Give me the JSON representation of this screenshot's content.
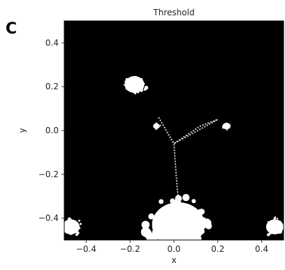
{
  "panel_label": "C",
  "chart_data": {
    "type": "heatmap",
    "title": "Threshold",
    "xlabel": "x",
    "ylabel": "y",
    "xlim": [
      -0.5,
      0.5
    ],
    "ylim": [
      -0.5,
      0.5
    ],
    "xticks": [
      -0.4,
      -0.2,
      0.0,
      0.2,
      0.4
    ],
    "xtick_labels": [
      "−0.4",
      "−0.2",
      "0.0",
      "0.2",
      "0.4"
    ],
    "yticks": [
      0.4,
      0.2,
      0.0,
      -0.2,
      -0.4
    ],
    "ytick_labels": [
      "0.4",
      "0.2",
      "0.0",
      "−0.2",
      "−0.4"
    ],
    "grid": false,
    "colormap": {
      "below_threshold": "#000000",
      "above_threshold": "#ffffff"
    },
    "thresholded_regions": [
      {
        "name": "blob-upper-left",
        "cx": -0.18,
        "cy": 0.21,
        "r": 0.045
      },
      {
        "name": "blob-right",
        "cx": 0.24,
        "cy": 0.02,
        "r": 0.018
      },
      {
        "name": "blob-center-left",
        "cx": -0.08,
        "cy": 0.02,
        "r": 0.015
      },
      {
        "name": "mass-bottom-center",
        "cx": 0.02,
        "cy": -0.43,
        "r": 0.12
      },
      {
        "name": "patch-bottom-left",
        "cx": -0.47,
        "cy": -0.44,
        "r": 0.04
      },
      {
        "name": "patch-bottom-right",
        "cx": 0.46,
        "cy": -0.44,
        "r": 0.04
      }
    ]
  }
}
